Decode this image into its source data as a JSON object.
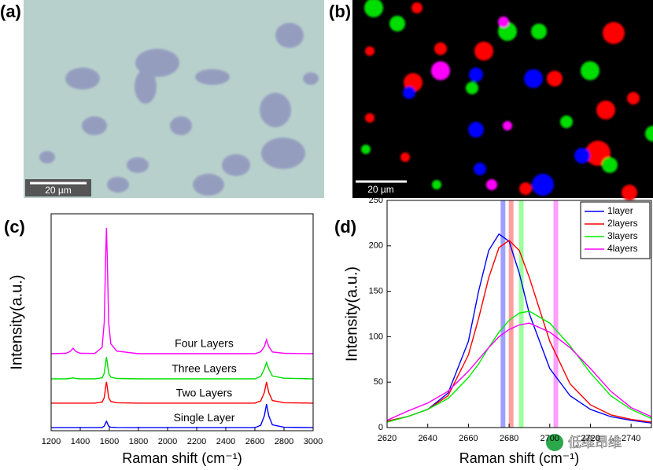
{
  "panels": {
    "a": {
      "label": "(a)",
      "scale_bar": "20 µm"
    },
    "b": {
      "label": "(b)",
      "scale_bar": "20 µm"
    },
    "c": {
      "label": "(c)"
    },
    "d": {
      "label": "(d)"
    }
  },
  "watermark": "低维昂维",
  "chart_data": [
    {
      "type": "line",
      "x_label": "Raman shift (cm⁻¹)",
      "y_label": "Intensity(a.u.)",
      "xlim": [
        1200,
        3000
      ],
      "xticks": [
        1200,
        1400,
        1600,
        1800,
        2000,
        2200,
        2400,
        2600,
        2800,
        3000
      ],
      "ylim": [
        0,
        100
      ],
      "x": [
        1200,
        1300,
        1330,
        1350,
        1370,
        1400,
        1500,
        1550,
        1565,
        1575,
        1580,
        1585,
        1595,
        1610,
        1650,
        1800,
        2000,
        2200,
        2400,
        2600,
        2640,
        2665,
        2680,
        2695,
        2720,
        2800,
        3000
      ],
      "series": [
        {
          "name": "Single Layer",
          "color": "#0000ff",
          "values": [
            1.4,
            1.4,
            1.4,
            1.4,
            1.4,
            1.4,
            1.4,
            1.5,
            2.1,
            3.7,
            4.3,
            3.7,
            2.1,
            1.6,
            1.5,
            1.4,
            1.4,
            1.4,
            1.4,
            1.4,
            2.5,
            6.9,
            12.3,
            6.9,
            2.7,
            1.6,
            1.4
          ]
        },
        {
          "name": "Two Layers",
          "color": "#ff0000",
          "values": [
            12.7,
            12.7,
            12.7,
            12.7,
            12.7,
            12.7,
            12.7,
            13.2,
            15.2,
            20.5,
            22.5,
            20.5,
            15.2,
            13.5,
            12.9,
            12.7,
            12.7,
            12.7,
            12.7,
            12.7,
            13.7,
            17.6,
            22.5,
            17.6,
            13.9,
            12.9,
            12.7
          ]
        },
        {
          "name": "Three Layers",
          "color": "#00dd00",
          "values": [
            23.9,
            23.9,
            24.1,
            24.4,
            24.1,
            23.9,
            23.9,
            24.4,
            26.4,
            31.9,
            33.9,
            31.9,
            26.4,
            24.7,
            24.1,
            23.9,
            23.9,
            23.9,
            23.9,
            23.9,
            25.0,
            28.5,
            31.5,
            28.5,
            25.2,
            24.2,
            23.9
          ]
        },
        {
          "name": "Four Layers",
          "color": "#ff00ff",
          "values": [
            35.5,
            35.7,
            36.5,
            38,
            36.5,
            35.7,
            35.6,
            38.4,
            50,
            81.9,
            93.5,
            81.9,
            50,
            40.1,
            36.7,
            35.5,
            35.5,
            35.5,
            35.5,
            35.5,
            36.4,
            38.8,
            42,
            38.8,
            36.3,
            35.7,
            35.5
          ]
        }
      ]
    },
    {
      "type": "line",
      "x_label": "Raman shift (cm⁻¹)",
      "y_label": "Intensity(a.u.)",
      "xlim": [
        2620,
        2750
      ],
      "xticks": [
        2620,
        2640,
        2660,
        2680,
        2700,
        2720,
        2740
      ],
      "ylim": [
        0,
        250
      ],
      "yticks": [
        0,
        50,
        100,
        150,
        200,
        250
      ],
      "legend": "upper right",
      "bands": [
        {
          "x": 2677,
          "color": "#7f7fff"
        },
        {
          "x": 2681,
          "color": "#ff7f7f"
        },
        {
          "x": 2686,
          "color": "#7fff7f"
        },
        {
          "x": 2703,
          "color": "#ff7fff"
        }
      ],
      "x": [
        2620,
        2630,
        2640,
        2650,
        2660,
        2665,
        2670,
        2675,
        2680,
        2685,
        2690,
        2700,
        2710,
        2720,
        2730,
        2740,
        2750
      ],
      "series": [
        {
          "name": "1layer",
          "color": "#0000ff",
          "values": [
            7,
            12,
            20,
            38,
            95,
            150,
            195,
            213,
            205,
            170,
            125,
            65,
            35,
            20,
            12,
            8,
            5
          ]
        },
        {
          "name": "2layers",
          "color": "#ff0000",
          "values": [
            7,
            12,
            20,
            35,
            80,
            120,
            165,
            198,
            206,
            195,
            165,
            95,
            48,
            25,
            14,
            9,
            6
          ]
        },
        {
          "name": "3layers",
          "color": "#00ee00",
          "values": [
            6,
            12,
            20,
            32,
            55,
            70,
            88,
            105,
            118,
            126,
            128,
            115,
            90,
            60,
            35,
            20,
            10
          ]
        },
        {
          "name": "4layers",
          "color": "#ff00ff",
          "values": [
            8,
            18,
            27,
            40,
            62,
            75,
            88,
            100,
            108,
            113,
            115,
            105,
            88,
            65,
            40,
            22,
            12
          ]
        }
      ]
    }
  ]
}
